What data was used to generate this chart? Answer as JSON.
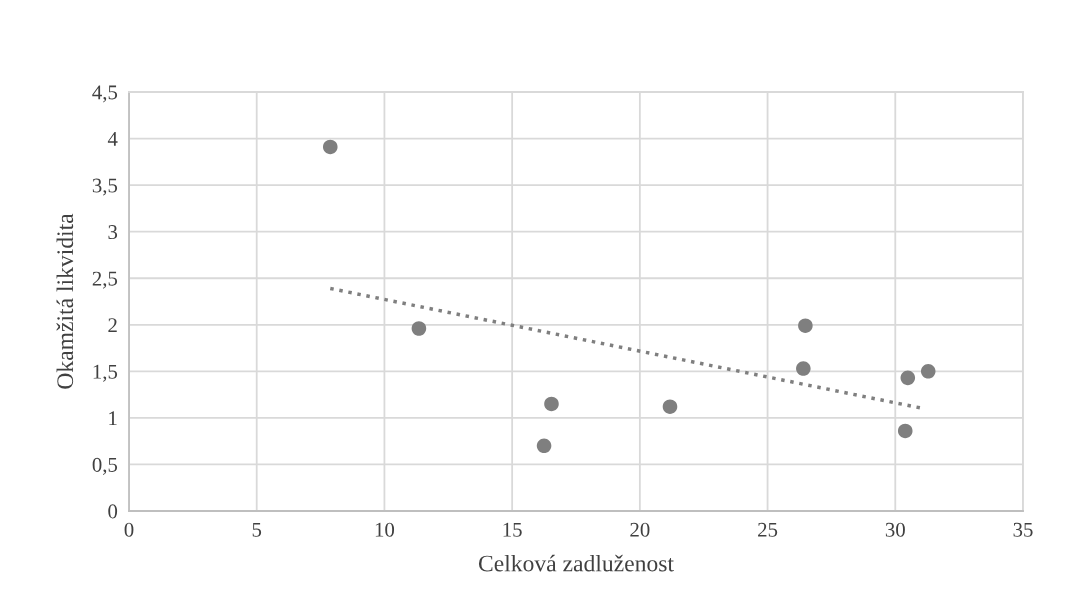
{
  "chart_data": {
    "type": "scatter",
    "xlabel": "Celková zadluženost",
    "ylabel": "Okamžitá likvidita",
    "xlim": [
      0,
      35
    ],
    "xticks": [
      0,
      5,
      10,
      15,
      20,
      25,
      30,
      35
    ],
    "ylim": [
      0,
      4.5
    ],
    "yticks": [
      0,
      {
        "value": 0.5,
        "label": "0,5"
      },
      1,
      {
        "value": 1.5,
        "label": "1,5"
      },
      2,
      {
        "value": 2.5,
        "label": "2,5"
      },
      3,
      {
        "value": 3.5,
        "label": "3,5"
      },
      4,
      {
        "value": 4.5,
        "label": "4,5"
      }
    ],
    "grid": true,
    "marker": "circle",
    "series": [
      {
        "color": "#7f7f7f",
        "x": [
          7.88,
          11.35,
          16.54,
          16.25,
          21.18,
          26.48,
          26.4,
          30.49,
          31.29,
          30.39
        ],
        "values": [
          3.91,
          1.96,
          1.15,
          0.7,
          1.12,
          1.99,
          1.53,
          1.43,
          1.5,
          0.86
        ]
      },
      {
        "type": "line",
        "color": "#7f7f7f",
        "line_style": "dotted",
        "marker": "none",
        "x": [
          7.88,
          31.11
        ],
        "values": [
          2.39,
          1.1
        ]
      }
    ]
  }
}
